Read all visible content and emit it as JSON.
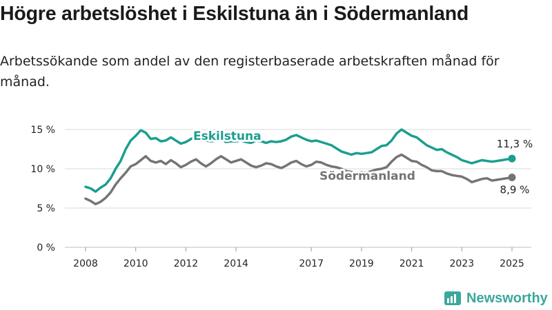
{
  "title": "Högre arbetslöshet i Eskilstuna än i Södermanland",
  "subtitle": "Arbetssökande som andel av den registerbaserade arbetskraften månad för månad.",
  "brand": "Newsworthy",
  "colors": {
    "eskilstuna": "#1b9e8f",
    "sodermanland": "#747474",
    "grid": "#d9d9d9",
    "brand": "#3aa89c"
  },
  "chart_data": {
    "type": "line",
    "xlim": [
      2008,
      2025
    ],
    "ylim": [
      0,
      15
    ],
    "x_ticks": [
      2008,
      2010,
      2012,
      2014,
      2017,
      2019,
      2021,
      2023,
      2025
    ],
    "x_tick_labels": [
      "2008",
      "2010",
      "2012",
      "2014",
      "2017",
      "2019",
      "2021",
      "2023",
      "2025"
    ],
    "y_ticks": [
      0,
      5,
      10,
      15
    ],
    "y_tick_labels": [
      "0 %",
      "5 %",
      "10 %",
      "15 %"
    ],
    "grid": true,
    "series": [
      {
        "name": "Eskilstuna",
        "end_label": "11,3 %",
        "points": [
          [
            2008.0,
            7.7
          ],
          [
            2008.2,
            7.5
          ],
          [
            2008.4,
            7.1
          ],
          [
            2008.6,
            7.6
          ],
          [
            2008.8,
            8.0
          ],
          [
            2009.0,
            8.8
          ],
          [
            2009.2,
            10.0
          ],
          [
            2009.4,
            11.0
          ],
          [
            2009.6,
            12.5
          ],
          [
            2009.8,
            13.6
          ],
          [
            2010.0,
            14.2
          ],
          [
            2010.2,
            14.9
          ],
          [
            2010.4,
            14.6
          ],
          [
            2010.6,
            13.8
          ],
          [
            2010.8,
            13.9
          ],
          [
            2011.0,
            13.5
          ],
          [
            2011.2,
            13.6
          ],
          [
            2011.4,
            14.0
          ],
          [
            2011.6,
            13.6
          ],
          [
            2011.8,
            13.2
          ],
          [
            2012.0,
            13.4
          ],
          [
            2012.2,
            13.8
          ],
          [
            2012.4,
            14.1
          ],
          [
            2012.6,
            13.9
          ],
          [
            2012.8,
            13.6
          ],
          [
            2013.0,
            13.5
          ],
          [
            2013.2,
            13.6
          ],
          [
            2013.4,
            13.8
          ],
          [
            2013.6,
            13.4
          ],
          [
            2013.8,
            13.5
          ],
          [
            2014.0,
            13.5
          ],
          [
            2014.2,
            13.6
          ],
          [
            2014.4,
            13.4
          ],
          [
            2014.6,
            13.3
          ],
          [
            2014.8,
            13.6
          ],
          [
            2015.0,
            13.5
          ],
          [
            2015.2,
            13.3
          ],
          [
            2015.4,
            13.5
          ],
          [
            2015.6,
            13.4
          ],
          [
            2015.8,
            13.5
          ],
          [
            2016.0,
            13.7
          ],
          [
            2016.2,
            14.1
          ],
          [
            2016.4,
            14.3
          ],
          [
            2016.6,
            14.0
          ],
          [
            2016.8,
            13.7
          ],
          [
            2017.0,
            13.5
          ],
          [
            2017.2,
            13.6
          ],
          [
            2017.4,
            13.4
          ],
          [
            2017.6,
            13.2
          ],
          [
            2017.8,
            13.0
          ],
          [
            2018.0,
            12.6
          ],
          [
            2018.2,
            12.2
          ],
          [
            2018.4,
            12.0
          ],
          [
            2018.6,
            11.8
          ],
          [
            2018.8,
            12.0
          ],
          [
            2019.0,
            11.9
          ],
          [
            2019.2,
            12.0
          ],
          [
            2019.4,
            12.1
          ],
          [
            2019.6,
            12.5
          ],
          [
            2019.8,
            12.9
          ],
          [
            2020.0,
            13.0
          ],
          [
            2020.2,
            13.6
          ],
          [
            2020.4,
            14.5
          ],
          [
            2020.6,
            15.0
          ],
          [
            2020.8,
            14.6
          ],
          [
            2021.0,
            14.2
          ],
          [
            2021.2,
            14.0
          ],
          [
            2021.4,
            13.5
          ],
          [
            2021.6,
            13.0
          ],
          [
            2021.8,
            12.7
          ],
          [
            2022.0,
            12.4
          ],
          [
            2022.2,
            12.5
          ],
          [
            2022.4,
            12.1
          ],
          [
            2022.6,
            11.8
          ],
          [
            2022.8,
            11.5
          ],
          [
            2023.0,
            11.1
          ],
          [
            2023.2,
            10.9
          ],
          [
            2023.4,
            10.7
          ],
          [
            2023.6,
            10.9
          ],
          [
            2023.8,
            11.1
          ],
          [
            2024.0,
            11.0
          ],
          [
            2024.2,
            10.9
          ],
          [
            2024.4,
            11.0
          ],
          [
            2024.6,
            11.1
          ],
          [
            2024.8,
            11.2
          ],
          [
            2025.0,
            11.3
          ]
        ]
      },
      {
        "name": "Södermanland",
        "end_label": "8,9 %",
        "points": [
          [
            2008.0,
            6.2
          ],
          [
            2008.2,
            5.9
          ],
          [
            2008.4,
            5.5
          ],
          [
            2008.6,
            5.8
          ],
          [
            2008.8,
            6.3
          ],
          [
            2009.0,
            7.0
          ],
          [
            2009.2,
            8.0
          ],
          [
            2009.4,
            8.8
          ],
          [
            2009.6,
            9.5
          ],
          [
            2009.8,
            10.3
          ],
          [
            2010.0,
            10.6
          ],
          [
            2010.2,
            11.1
          ],
          [
            2010.4,
            11.6
          ],
          [
            2010.6,
            11.0
          ],
          [
            2010.8,
            10.8
          ],
          [
            2011.0,
            11.0
          ],
          [
            2011.2,
            10.6
          ],
          [
            2011.4,
            11.1
          ],
          [
            2011.6,
            10.7
          ],
          [
            2011.8,
            10.2
          ],
          [
            2012.0,
            10.5
          ],
          [
            2012.2,
            10.9
          ],
          [
            2012.4,
            11.2
          ],
          [
            2012.6,
            10.7
          ],
          [
            2012.8,
            10.3
          ],
          [
            2013.0,
            10.7
          ],
          [
            2013.2,
            11.2
          ],
          [
            2013.4,
            11.6
          ],
          [
            2013.6,
            11.2
          ],
          [
            2013.8,
            10.8
          ],
          [
            2014.0,
            11.0
          ],
          [
            2014.2,
            11.2
          ],
          [
            2014.4,
            10.8
          ],
          [
            2014.6,
            10.4
          ],
          [
            2014.8,
            10.2
          ],
          [
            2015.0,
            10.4
          ],
          [
            2015.2,
            10.7
          ],
          [
            2015.4,
            10.6
          ],
          [
            2015.6,
            10.3
          ],
          [
            2015.8,
            10.1
          ],
          [
            2016.0,
            10.4
          ],
          [
            2016.2,
            10.8
          ],
          [
            2016.4,
            11.0
          ],
          [
            2016.6,
            10.6
          ],
          [
            2016.8,
            10.3
          ],
          [
            2017.0,
            10.5
          ],
          [
            2017.2,
            10.9
          ],
          [
            2017.4,
            10.8
          ],
          [
            2017.6,
            10.5
          ],
          [
            2017.8,
            10.3
          ],
          [
            2018.0,
            10.2
          ],
          [
            2018.2,
            10.0
          ],
          [
            2018.4,
            9.7
          ],
          [
            2018.6,
            9.6
          ],
          [
            2018.8,
            9.5
          ],
          [
            2019.0,
            9.6
          ],
          [
            2019.2,
            9.5
          ],
          [
            2019.4,
            9.7
          ],
          [
            2019.6,
            9.9
          ],
          [
            2019.8,
            10.0
          ],
          [
            2020.0,
            10.2
          ],
          [
            2020.2,
            10.9
          ],
          [
            2020.4,
            11.5
          ],
          [
            2020.6,
            11.8
          ],
          [
            2020.8,
            11.4
          ],
          [
            2021.0,
            11.0
          ],
          [
            2021.2,
            10.9
          ],
          [
            2021.4,
            10.5
          ],
          [
            2021.6,
            10.2
          ],
          [
            2021.8,
            9.8
          ],
          [
            2022.0,
            9.7
          ],
          [
            2022.2,
            9.7
          ],
          [
            2022.4,
            9.4
          ],
          [
            2022.6,
            9.2
          ],
          [
            2022.8,
            9.1
          ],
          [
            2023.0,
            9.0
          ],
          [
            2023.2,
            8.7
          ],
          [
            2023.4,
            8.3
          ],
          [
            2023.6,
            8.5
          ],
          [
            2023.8,
            8.7
          ],
          [
            2024.0,
            8.8
          ],
          [
            2024.2,
            8.5
          ],
          [
            2024.4,
            8.6
          ],
          [
            2024.6,
            8.7
          ],
          [
            2024.8,
            8.8
          ],
          [
            2025.0,
            8.9
          ]
        ]
      }
    ]
  }
}
